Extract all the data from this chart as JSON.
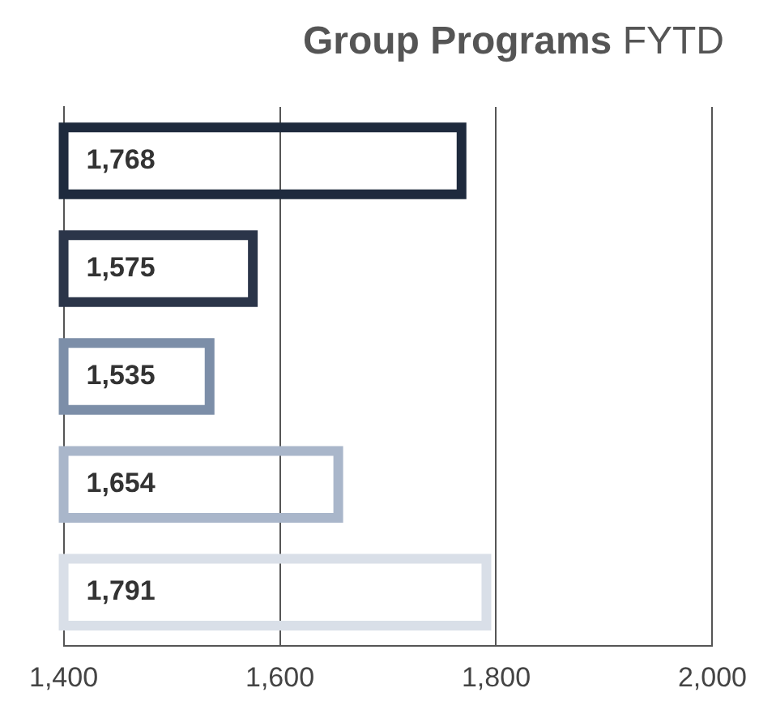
{
  "chart_data": {
    "type": "bar",
    "orientation": "horizontal",
    "title": "Group Programs",
    "subtitle": "FYTD",
    "categories": [
      null,
      null,
      null,
      null,
      null
    ],
    "values": [
      1768,
      1575,
      1535,
      1654,
      1791
    ],
    "colors": [
      "#1e2a3d",
      "#2b3549",
      "#7c8ea8",
      "#a9b6ca",
      "#d9dfe8"
    ],
    "value_labels": [
      "1,768",
      "1,575",
      "1,535",
      "1,654",
      "1,791"
    ],
    "xlim": [
      1400,
      2000
    ],
    "xticks": [
      {
        "value": 1400,
        "label": "1,400"
      },
      {
        "value": 1600,
        "label": "1,600"
      },
      {
        "value": 1800,
        "label": "1,800"
      },
      {
        "value": 2000,
        "label": "2,000"
      }
    ],
    "grid": "x",
    "legend": false
  }
}
